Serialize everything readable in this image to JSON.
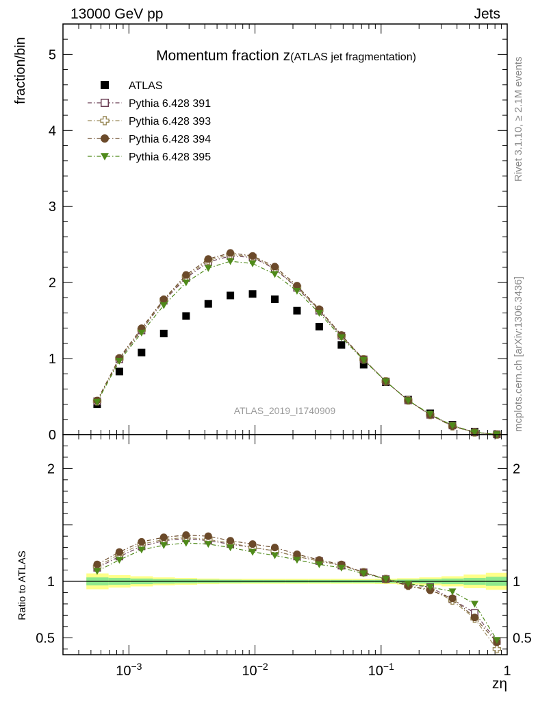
{
  "header": {
    "energy_label": "13000 GeV pp",
    "category_label": "Jets",
    "side_label_top": "Rivet 3.1.10, ≥ 2.1M events",
    "side_label_bottom": "mcplots.cern.ch [arXiv:1306.3436]"
  },
  "chart_data": [
    {
      "type": "scatter",
      "title": "Momentum fraction z",
      "title_suffix": "(ATLAS jet fragmentation)",
      "ylabel": "fraction/bin",
      "watermark": "ATLAS_2019_I1740909",
      "xscale": "log",
      "xlim": [
        0.0003,
        1
      ],
      "ylim": [
        0,
        5.4
      ],
      "yticks": [
        0,
        1,
        2,
        3,
        4,
        5
      ],
      "legend_position": "top-left",
      "x": [
        0.00056,
        0.00084,
        0.00126,
        0.00189,
        0.00284,
        0.00426,
        0.00638,
        0.00957,
        0.01436,
        0.02154,
        0.03231,
        0.04846,
        0.0727,
        0.109,
        0.164,
        0.245,
        0.368,
        0.552,
        0.828
      ],
      "series": [
        {
          "name": "ATLAS",
          "color": "#000000",
          "marker": "filled-square",
          "line": "none",
          "values": [
            0.4,
            0.83,
            1.08,
            1.33,
            1.56,
            1.72,
            1.83,
            1.85,
            1.78,
            1.63,
            1.42,
            1.18,
            0.92,
            0.69,
            0.46,
            0.28,
            0.13,
            0.04,
            0.005
          ]
        },
        {
          "name": "Pythia 6.428 391",
          "color": "#6b3f55",
          "marker": "open-square",
          "line": "dash-dot",
          "values": [
            0.44,
            0.99,
            1.37,
            1.76,
            2.06,
            2.27,
            2.35,
            2.33,
            2.18,
            1.93,
            1.63,
            1.3,
            0.99,
            0.7,
            0.45,
            0.26,
            0.12,
            0.03,
            0.003
          ]
        },
        {
          "name": "Pythia 6.428 393",
          "color": "#9a8a5a",
          "marker": "open-cross",
          "line": "dash-dot",
          "values": [
            0.44,
            1.0,
            1.38,
            1.77,
            2.08,
            2.29,
            2.37,
            2.34,
            2.19,
            1.94,
            1.64,
            1.3,
            0.99,
            0.7,
            0.45,
            0.26,
            0.11,
            0.03,
            0.002
          ]
        },
        {
          "name": "Pythia 6.428 394",
          "color": "#6b4a2a",
          "marker": "filled-circle",
          "line": "dash-dot",
          "values": [
            0.45,
            1.01,
            1.4,
            1.78,
            2.1,
            2.31,
            2.39,
            2.35,
            2.21,
            1.96,
            1.65,
            1.31,
            0.99,
            0.7,
            0.45,
            0.26,
            0.11,
            0.03,
            0.003
          ]
        },
        {
          "name": "Pythia 6.428 395",
          "color": "#4f8a1a",
          "marker": "filled-triangle-down",
          "line": "dash-dot",
          "values": [
            0.43,
            0.97,
            1.34,
            1.7,
            2.0,
            2.19,
            2.28,
            2.25,
            2.11,
            1.89,
            1.6,
            1.28,
            0.98,
            0.7,
            0.45,
            0.27,
            0.12,
            0.03,
            0.003
          ]
        }
      ]
    },
    {
      "type": "scatter",
      "ylabel": "Ratio to ATLAS",
      "xlabel": "zη",
      "xscale": "log",
      "xlim": [
        0.0003,
        1
      ],
      "ylim": [
        0.35,
        2.3
      ],
      "yticks": [
        0.5,
        1,
        2
      ],
      "xticks": [
        0.001,
        0.01,
        0.1,
        1
      ],
      "xtick_labels": [
        "10−3",
        "10−2",
        "10−1",
        "1"
      ],
      "reference_line": 1,
      "band": {
        "edges": [
          0.00046,
          0.00069,
          0.00103,
          0.00155,
          0.00232,
          0.00348,
          0.00522,
          0.00783,
          0.01175,
          0.01762,
          0.02643,
          0.03964,
          0.05946,
          0.0892,
          0.1338,
          0.2007,
          0.301,
          0.4515,
          0.6772,
          1.0
        ],
        "inner_halfwidth": [
          0.035,
          0.03,
          0.025,
          0.02,
          0.018,
          0.015,
          0.014,
          0.013,
          0.013,
          0.013,
          0.013,
          0.013,
          0.013,
          0.014,
          0.016,
          0.02,
          0.025,
          0.03,
          0.04
        ],
        "outer_halfwidth": [
          0.07,
          0.055,
          0.045,
          0.035,
          0.03,
          0.025,
          0.022,
          0.022,
          0.022,
          0.022,
          0.022,
          0.022,
          0.022,
          0.024,
          0.028,
          0.035,
          0.045,
          0.06,
          0.075
        ],
        "inner_color": "#8de88d",
        "outer_color": "#ffff88"
      },
      "series": [
        {
          "name": "Pythia 6.428 391",
          "values": [
            1.12,
            1.22,
            1.31,
            1.36,
            1.38,
            1.36,
            1.33,
            1.3,
            1.27,
            1.22,
            1.18,
            1.14,
            1.08,
            1.02,
            0.97,
            0.95,
            0.84,
            0.72,
            0.47
          ]
        },
        {
          "name": "Pythia 6.428 393",
          "values": [
            1.13,
            1.24,
            1.33,
            1.37,
            1.39,
            1.37,
            1.34,
            1.3,
            1.27,
            1.22,
            1.18,
            1.14,
            1.08,
            1.02,
            0.96,
            0.93,
            0.83,
            0.67,
            0.4
          ]
        },
        {
          "name": "Pythia 6.428 394",
          "values": [
            1.15,
            1.26,
            1.35,
            1.39,
            1.41,
            1.4,
            1.36,
            1.33,
            1.3,
            1.24,
            1.19,
            1.15,
            1.08,
            1.02,
            0.96,
            0.92,
            0.85,
            0.68,
            0.46
          ]
        },
        {
          "name": "Pythia 6.428 395",
          "values": [
            1.09,
            1.19,
            1.28,
            1.32,
            1.34,
            1.33,
            1.3,
            1.26,
            1.23,
            1.19,
            1.15,
            1.12,
            1.07,
            1.02,
            0.98,
            0.95,
            0.91,
            0.8,
            0.48
          ]
        }
      ]
    }
  ]
}
